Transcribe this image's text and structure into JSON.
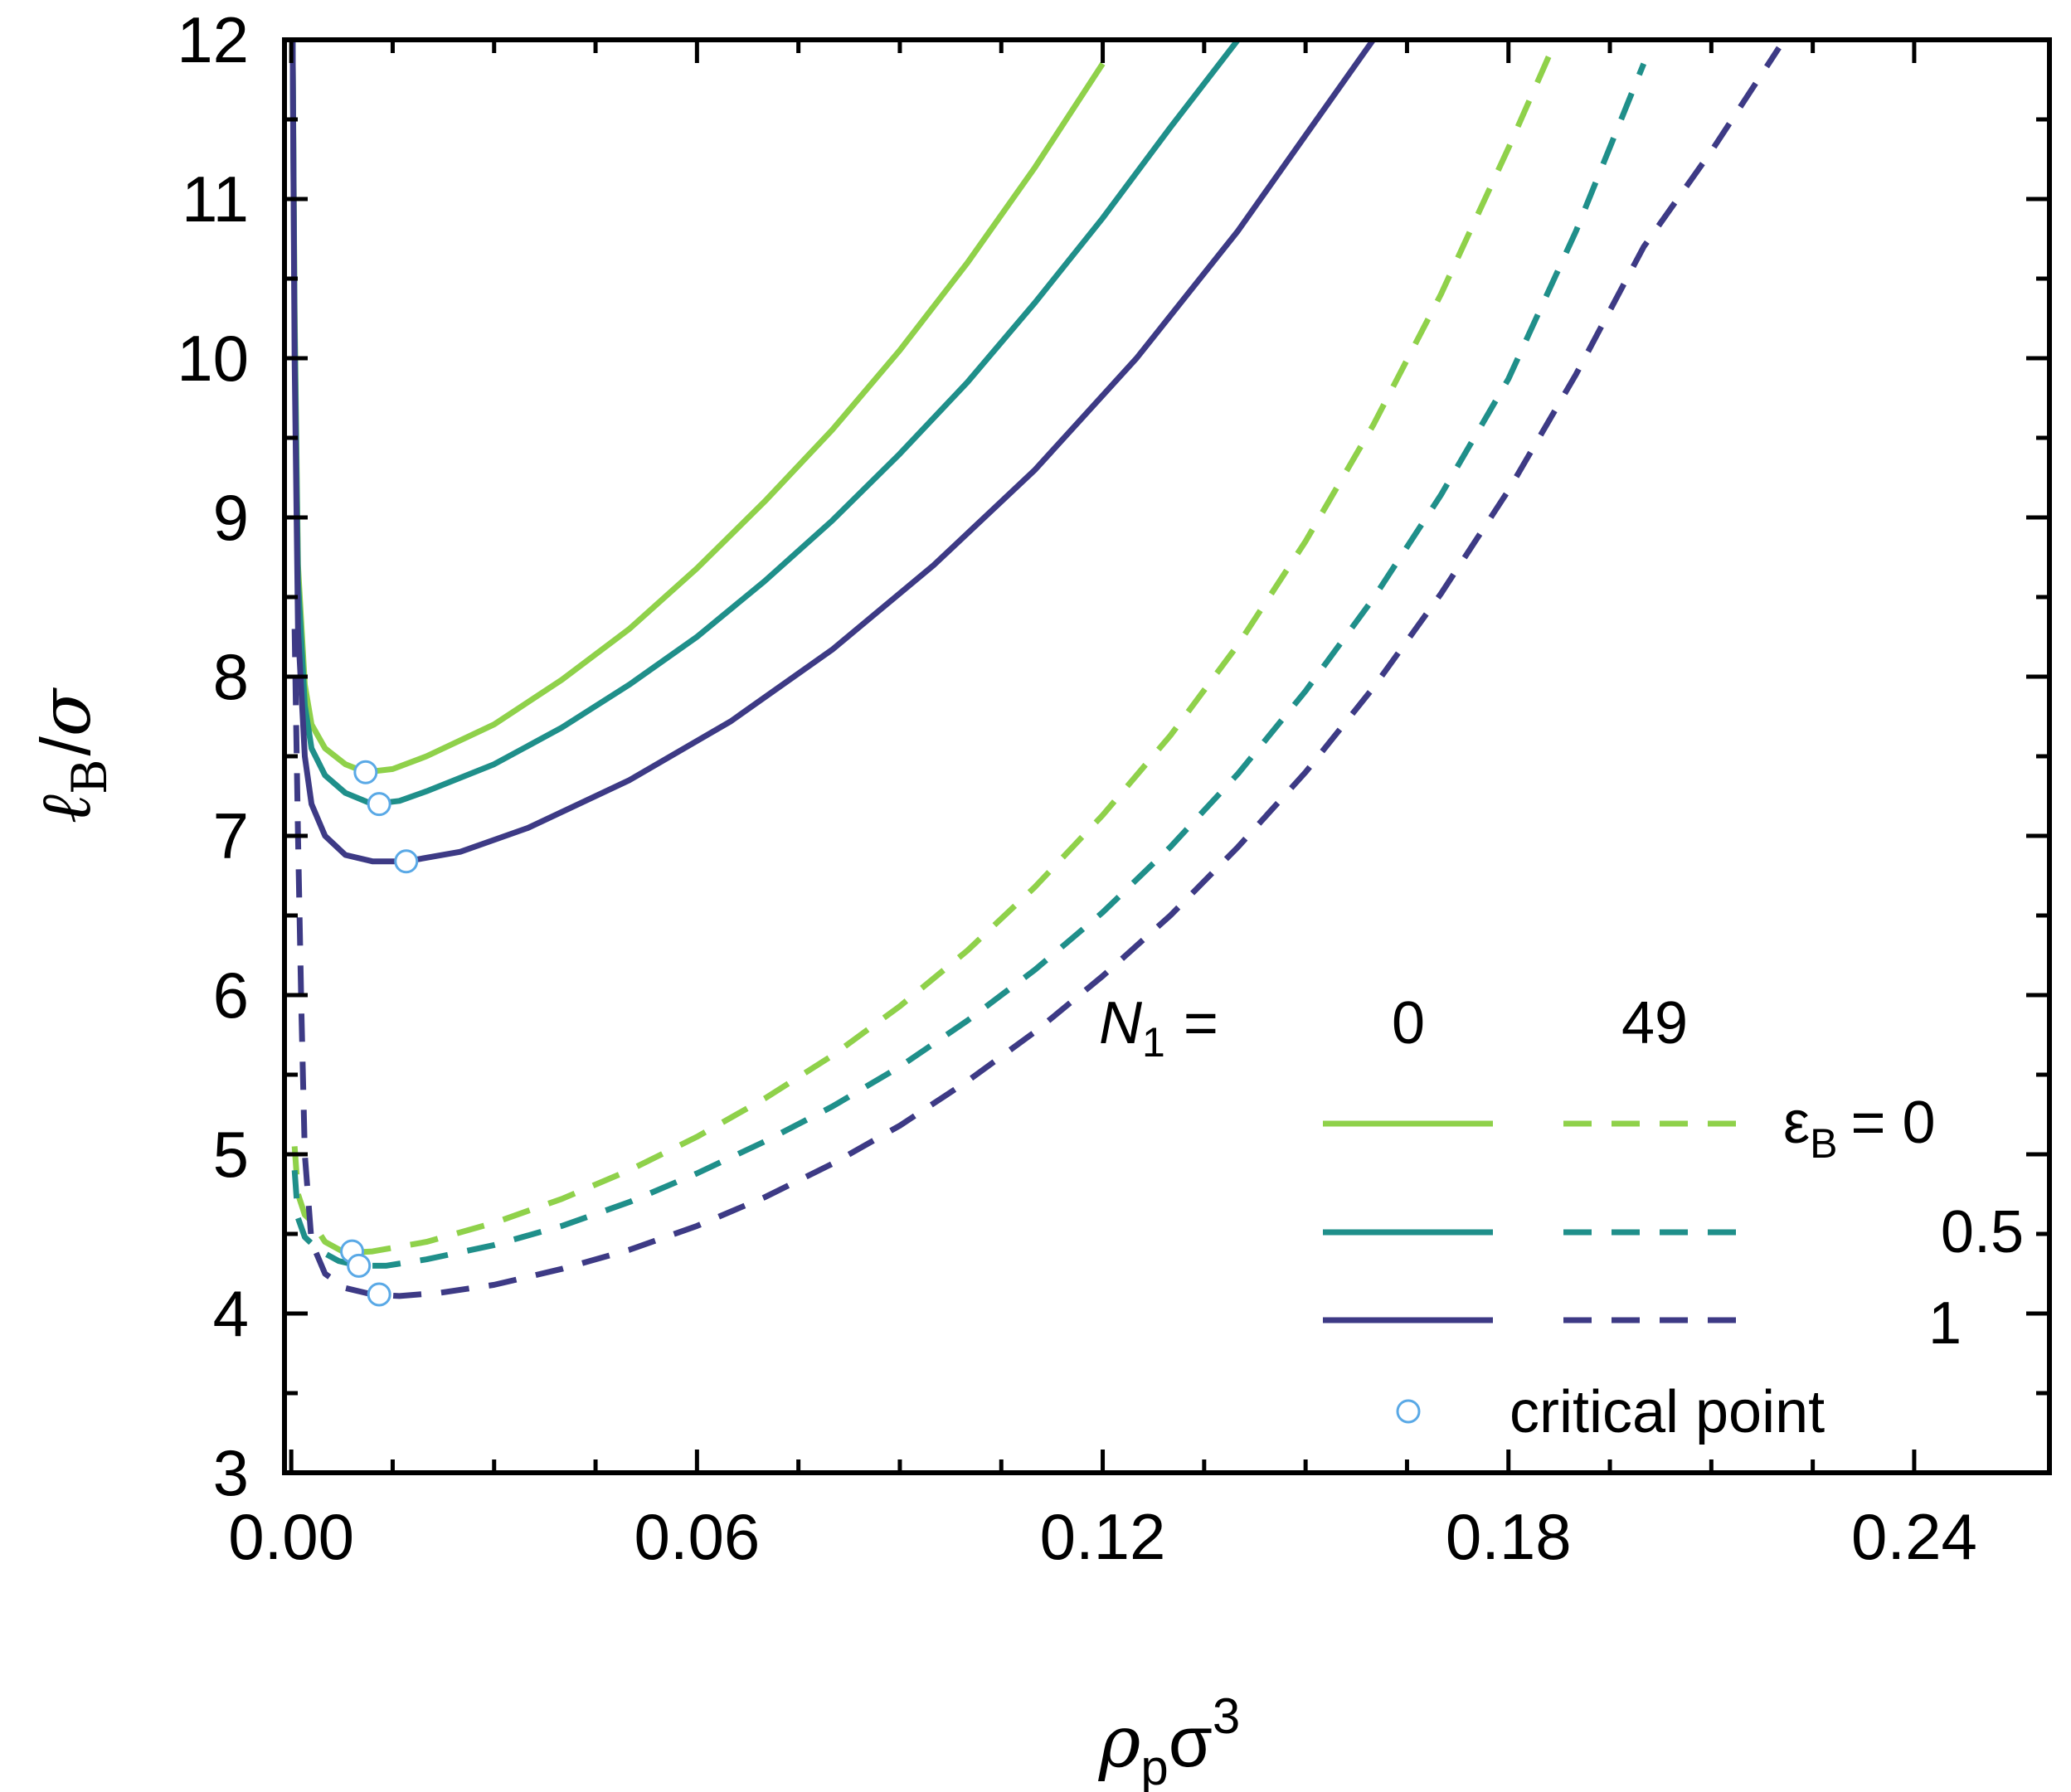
{
  "chart_data": {
    "type": "line",
    "title": "",
    "xlabel": {
      "rho": "ρ",
      "sub": "p",
      "sigma": "σ",
      "sup": "3"
    },
    "ylabel": {
      "ell": "ℓ",
      "sub": "B",
      "slash": "/",
      "sigma": "σ"
    },
    "xlim": [
      -0.001,
      0.26
    ],
    "ylim": [
      3,
      12
    ],
    "x_ticks": [
      0.0,
      0.06,
      0.12,
      0.18,
      0.24
    ],
    "x_tick_labels": [
      "0.00",
      "0.06",
      "0.12",
      "0.18",
      "0.24"
    ],
    "y_ticks": [
      3,
      4,
      5,
      6,
      7,
      8,
      9,
      10,
      11,
      12
    ],
    "y_tick_labels": [
      "3",
      "4",
      "5",
      "6",
      "7",
      "8",
      "9",
      "10",
      "11",
      "12"
    ],
    "colors": {
      "eps0": "#8fd14a",
      "eps05": "#1f8f8a",
      "eps1": "#3d3a85",
      "critical_marker": "#5aa9e6"
    },
    "series": [
      {
        "name": "N1=0, εB=0",
        "style": "solid",
        "color_key": "eps0",
        "x": [
          0.0002,
          0.0005,
          0.001,
          0.002,
          0.003,
          0.005,
          0.008,
          0.011,
          0.015,
          0.02,
          0.03,
          0.04,
          0.05,
          0.06,
          0.07,
          0.08,
          0.09,
          0.1,
          0.11,
          0.12
        ],
        "y": [
          12.0,
          10.3,
          8.7,
          7.95,
          7.7,
          7.55,
          7.45,
          7.4,
          7.42,
          7.5,
          7.7,
          7.98,
          8.3,
          8.68,
          9.1,
          9.55,
          10.05,
          10.6,
          11.2,
          11.85
        ]
      },
      {
        "name": "N1=0, εB=0.5",
        "style": "solid",
        "color_key": "eps05",
        "x": [
          0.0002,
          0.0005,
          0.001,
          0.002,
          0.003,
          0.005,
          0.008,
          0.012,
          0.016,
          0.02,
          0.03,
          0.04,
          0.05,
          0.06,
          0.07,
          0.08,
          0.09,
          0.1,
          0.11,
          0.12,
          0.13,
          0.14
        ],
        "y": [
          12.0,
          10.2,
          8.6,
          7.82,
          7.55,
          7.38,
          7.27,
          7.2,
          7.22,
          7.28,
          7.45,
          7.68,
          7.95,
          8.25,
          8.6,
          8.98,
          9.4,
          9.85,
          10.35,
          10.88,
          11.45,
          12.0
        ]
      },
      {
        "name": "N1=0, εB=1",
        "style": "solid",
        "color_key": "eps1",
        "x": [
          0.0002,
          0.0005,
          0.001,
          0.002,
          0.003,
          0.005,
          0.008,
          0.012,
          0.017,
          0.025,
          0.035,
          0.05,
          0.065,
          0.08,
          0.095,
          0.11,
          0.125,
          0.14,
          0.15,
          0.16
        ],
        "y": [
          12.0,
          10.0,
          8.3,
          7.5,
          7.2,
          7.0,
          6.88,
          6.84,
          6.84,
          6.9,
          7.05,
          7.35,
          7.72,
          8.17,
          8.7,
          9.3,
          10.0,
          10.8,
          11.4,
          12.0
        ]
      },
      {
        "name": "N1=49, εB=0",
        "style": "dashed",
        "color_key": "eps0",
        "x": [
          0.0005,
          0.001,
          0.002,
          0.003,
          0.005,
          0.008,
          0.012,
          0.02,
          0.03,
          0.04,
          0.05,
          0.06,
          0.07,
          0.08,
          0.09,
          0.1,
          0.11,
          0.12,
          0.13,
          0.14,
          0.15,
          0.16,
          0.17,
          0.18,
          0.186
        ],
        "y": [
          5.05,
          4.75,
          4.62,
          4.58,
          4.45,
          4.38,
          4.39,
          4.45,
          4.57,
          4.72,
          4.9,
          5.11,
          5.35,
          5.62,
          5.93,
          6.28,
          6.68,
          7.13,
          7.63,
          8.2,
          8.85,
          9.58,
          10.4,
          11.32,
          11.9
        ]
      },
      {
        "name": "N1=49, εB=0.5",
        "style": "dashed",
        "color_key": "eps05",
        "x": [
          0.0005,
          0.001,
          0.002,
          0.004,
          0.007,
          0.01,
          0.014,
          0.02,
          0.03,
          0.04,
          0.05,
          0.06,
          0.07,
          0.08,
          0.09,
          0.1,
          0.11,
          0.12,
          0.13,
          0.14,
          0.15,
          0.16,
          0.17,
          0.18,
          0.19,
          0.2
        ],
        "y": [
          4.9,
          4.6,
          4.48,
          4.4,
          4.33,
          4.3,
          4.3,
          4.34,
          4.43,
          4.55,
          4.7,
          4.88,
          5.08,
          5.3,
          5.55,
          5.84,
          6.16,
          6.52,
          6.93,
          7.39,
          7.91,
          8.49,
          9.14,
          9.87,
          10.8,
          11.85
        ]
      },
      {
        "name": "N1=49, εB=1",
        "style": "dashed",
        "color_key": "eps1",
        "x": [
          0.0005,
          0.001,
          0.0015,
          0.002,
          0.003,
          0.005,
          0.008,
          0.012,
          0.016,
          0.022,
          0.03,
          0.04,
          0.05,
          0.06,
          0.07,
          0.08,
          0.09,
          0.1,
          0.11,
          0.12,
          0.13,
          0.14,
          0.15,
          0.16,
          0.17,
          0.18,
          0.19,
          0.2,
          0.21,
          0.22
        ],
        "y": [
          8.3,
          7.0,
          5.9,
          5.0,
          4.45,
          4.25,
          4.16,
          4.12,
          4.11,
          4.13,
          4.18,
          4.28,
          4.4,
          4.55,
          4.73,
          4.94,
          5.18,
          5.46,
          5.77,
          6.12,
          6.5,
          6.93,
          7.4,
          7.93,
          8.52,
          9.17,
          9.9,
          10.7,
          11.3,
          11.95
        ]
      }
    ],
    "critical_points": [
      {
        "label": "N1=0, εB=0",
        "x": 0.011,
        "y": 7.4
      },
      {
        "label": "N1=0, εB=0.5",
        "x": 0.013,
        "y": 7.2
      },
      {
        "label": "N1=0, εB=1",
        "x": 0.017,
        "y": 6.84
      },
      {
        "label": "N1=49, εB=0",
        "x": 0.009,
        "y": 4.39
      },
      {
        "label": "N1=49, εB=0.5",
        "x": 0.01,
        "y": 4.3
      },
      {
        "label": "N1=49, εB=1",
        "x": 0.013,
        "y": 4.12
      }
    ],
    "legend": {
      "position": "bottom-right",
      "n1_label": "N",
      "n1_sub": "1",
      "n1_equals": "=",
      "col_solid": "0",
      "col_dashed": "49",
      "eps_symbol": "ε",
      "eps_sub": "B",
      "eps_equals": "= 0",
      "eps_mid": "0.5",
      "eps_last": "1",
      "critical": "critical point"
    }
  }
}
